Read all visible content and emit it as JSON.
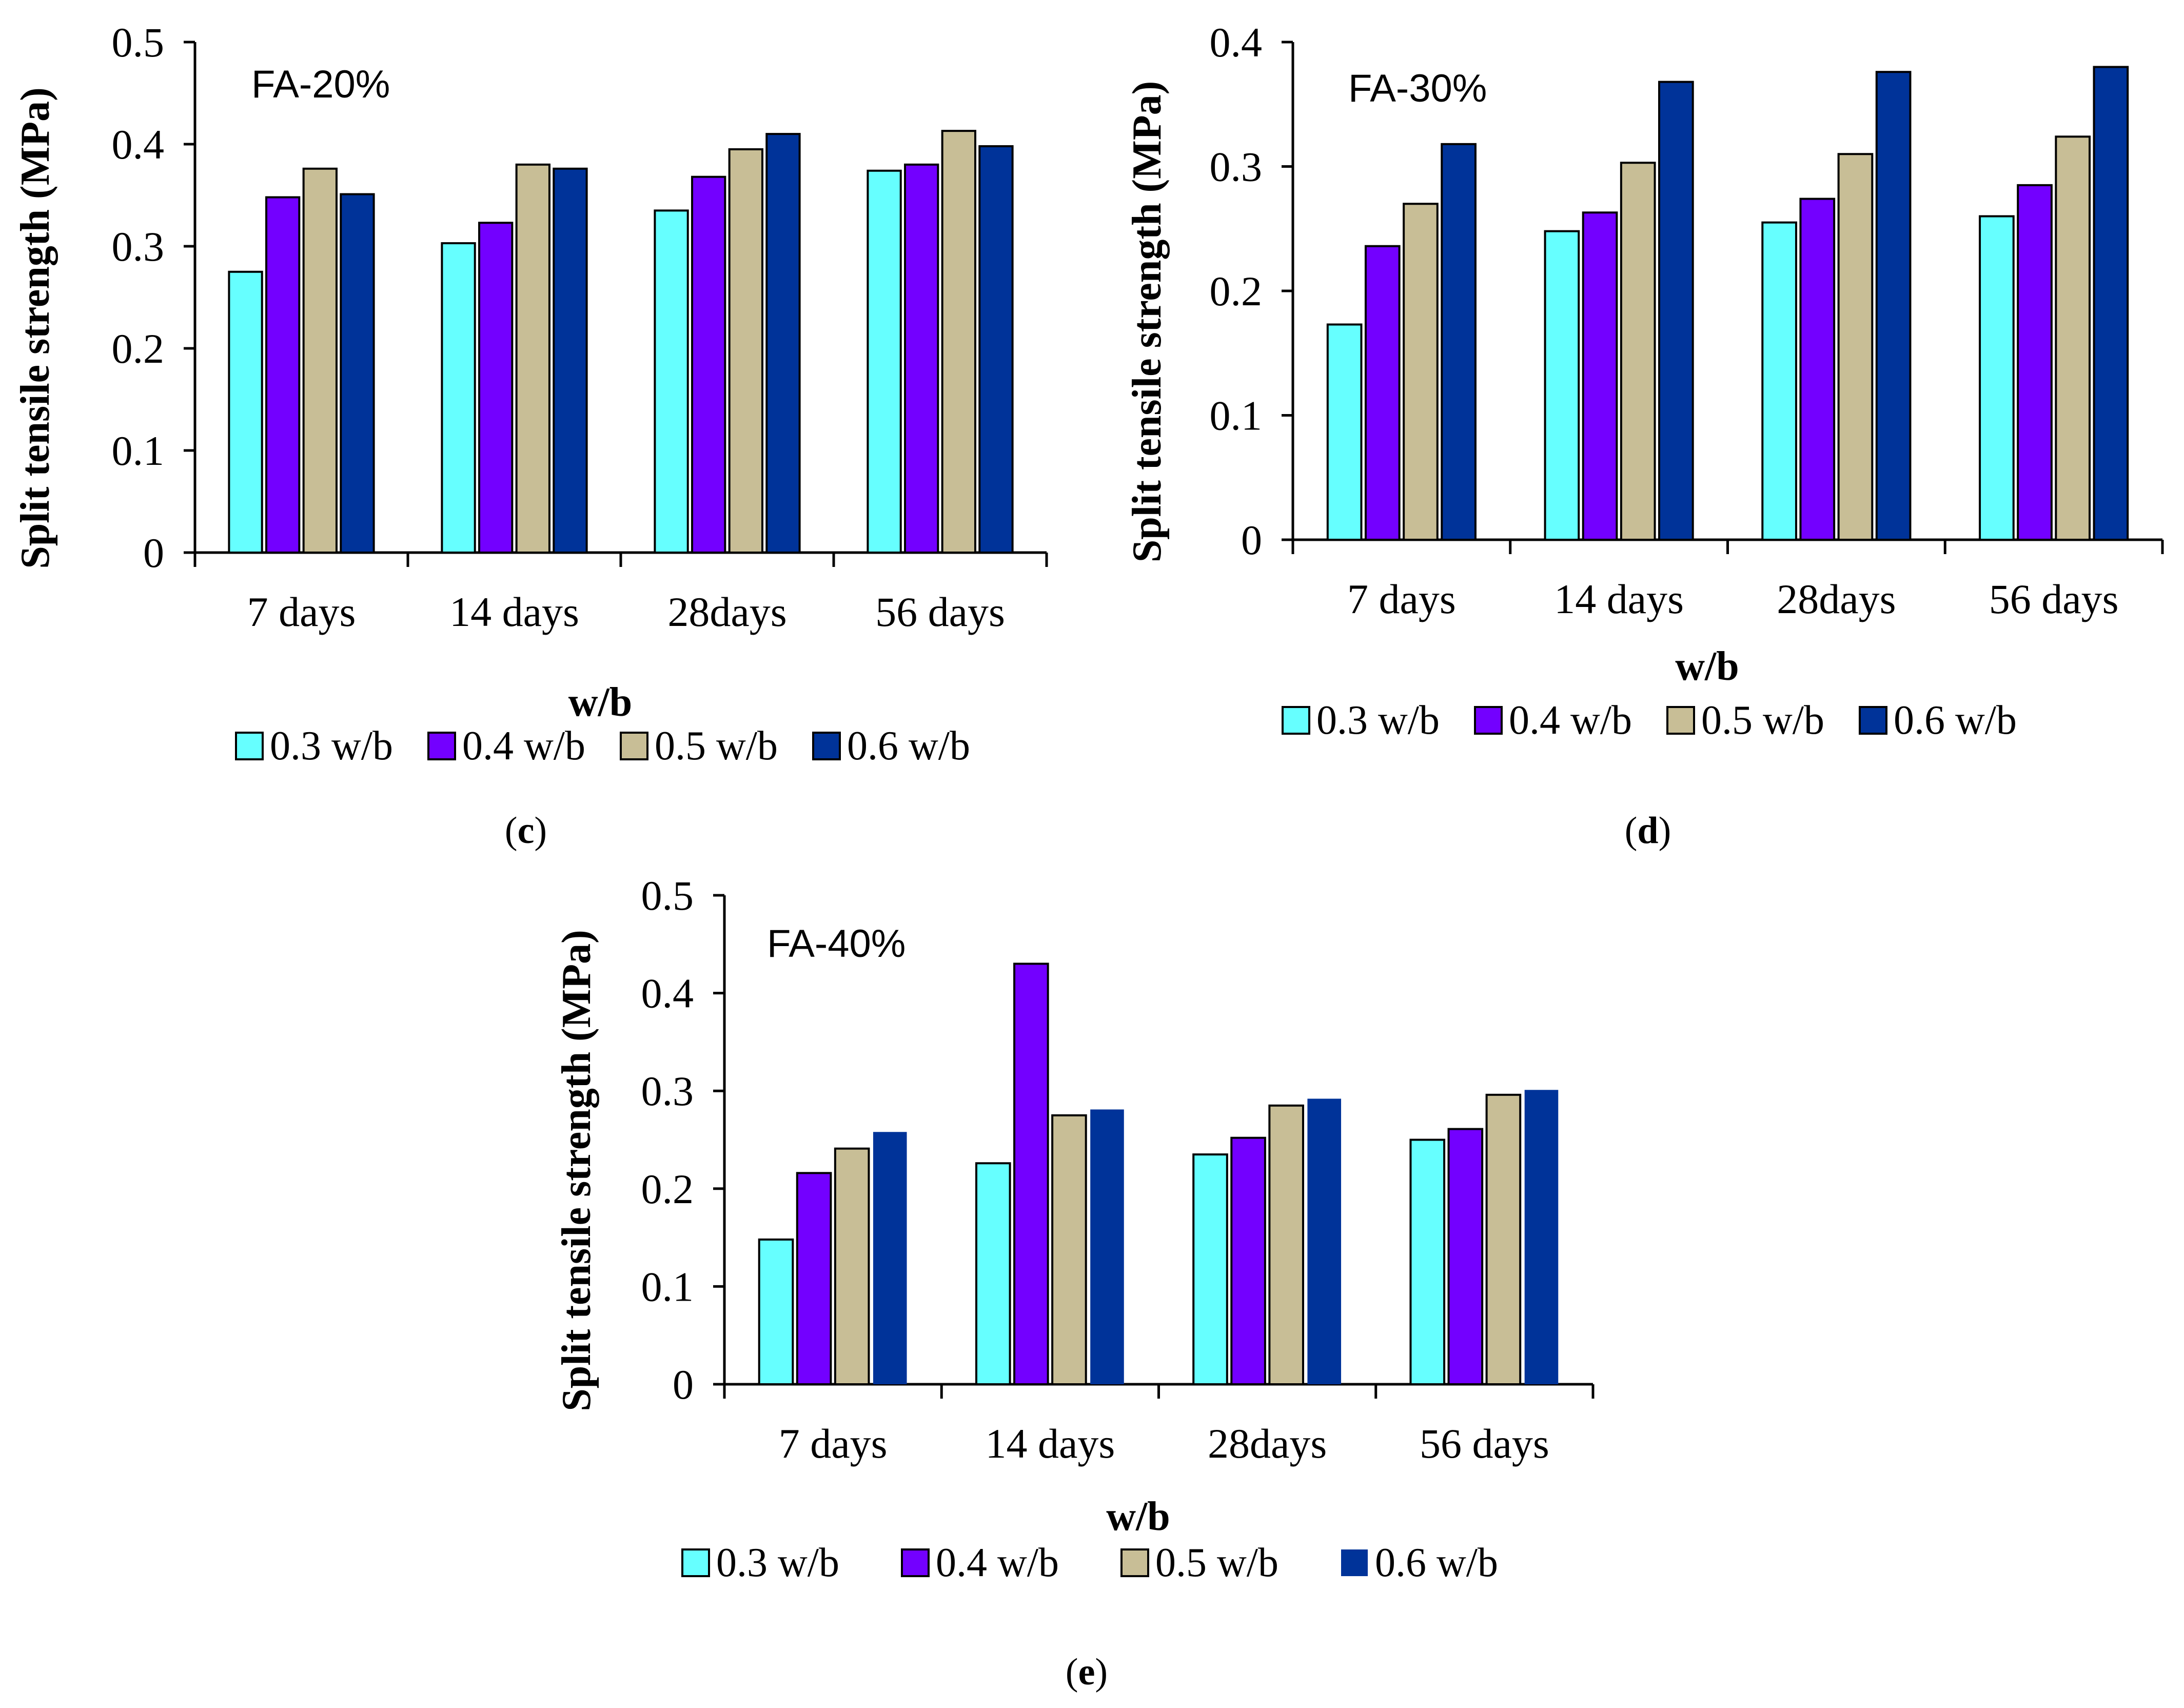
{
  "colors": {
    "series": [
      "#66FFFF",
      "#7300FF",
      "#C8BE96",
      "#003399"
    ],
    "outline": "#000000"
  },
  "chart_data": [
    {
      "type": "bar",
      "id": "c",
      "title": "FA-20%",
      "panel_label": "c",
      "xlabel": "w/b",
      "ylabel": "Split tensile strength (MPa)",
      "ylim": [
        0,
        0.5
      ],
      "yticks": [
        "0",
        "0.1",
        "0.2",
        "0.3",
        "0.4",
        "0.5"
      ],
      "categories": [
        "7 days",
        "14 days",
        "28days",
        "56 days"
      ],
      "series": [
        {
          "name": "0.3 w/b",
          "values": [
            0.275,
            0.303,
            0.335,
            0.374
          ]
        },
        {
          "name": "0.4 w/b",
          "values": [
            0.348,
            0.323,
            0.368,
            0.38
          ]
        },
        {
          "name": "0.5 w/b",
          "values": [
            0.376,
            0.38,
            0.395,
            0.413
          ]
        },
        {
          "name": "0.6 w/b",
          "values": [
            0.351,
            0.376,
            0.41,
            0.398
          ]
        }
      ],
      "legend": "bottom"
    },
    {
      "type": "bar",
      "id": "d",
      "title": "FA-30%",
      "panel_label": "d",
      "xlabel": "w/b",
      "ylabel": "Split tensile strength (MPa)",
      "ylim": [
        0,
        0.4
      ],
      "yticks": [
        "0",
        "0.1",
        "0.2",
        "0.3",
        "0.4"
      ],
      "categories": [
        "7 days",
        "14 days",
        "28days",
        "56 days"
      ],
      "series": [
        {
          "name": "0.3 w/b",
          "values": [
            0.173,
            0.248,
            0.255,
            0.26
          ]
        },
        {
          "name": "0.4 w/b",
          "values": [
            0.236,
            0.263,
            0.274,
            0.285
          ]
        },
        {
          "name": "0.5 w/b",
          "values": [
            0.27,
            0.303,
            0.31,
            0.324
          ]
        },
        {
          "name": "0.6 w/b",
          "values": [
            0.318,
            0.368,
            0.376,
            0.38
          ]
        }
      ],
      "legend": "bottom"
    },
    {
      "type": "bar",
      "id": "e",
      "title": "FA-40%",
      "panel_label": "e",
      "xlabel": "w/b",
      "ylabel": "Split tensile strength (MPa)",
      "ylim": [
        0,
        0.5
      ],
      "yticks": [
        "0",
        "0.1",
        "0.2",
        "0.3",
        "0.4",
        "0.5"
      ],
      "categories": [
        "7 days",
        "14 days",
        "28days",
        "56 days"
      ],
      "series": [
        {
          "name": "0.3 w/b",
          "values": [
            0.148,
            0.226,
            0.235,
            0.25
          ]
        },
        {
          "name": "0.4 w/b",
          "values": [
            0.216,
            0.43,
            0.252,
            0.261
          ]
        },
        {
          "name": "0.5 w/b",
          "values": [
            0.241,
            0.275,
            0.285,
            0.296
          ]
        },
        {
          "name": "0.6 w/b",
          "values": [
            0.258,
            0.281,
            0.292,
            0.301
          ]
        }
      ],
      "legend": "bottom"
    }
  ]
}
